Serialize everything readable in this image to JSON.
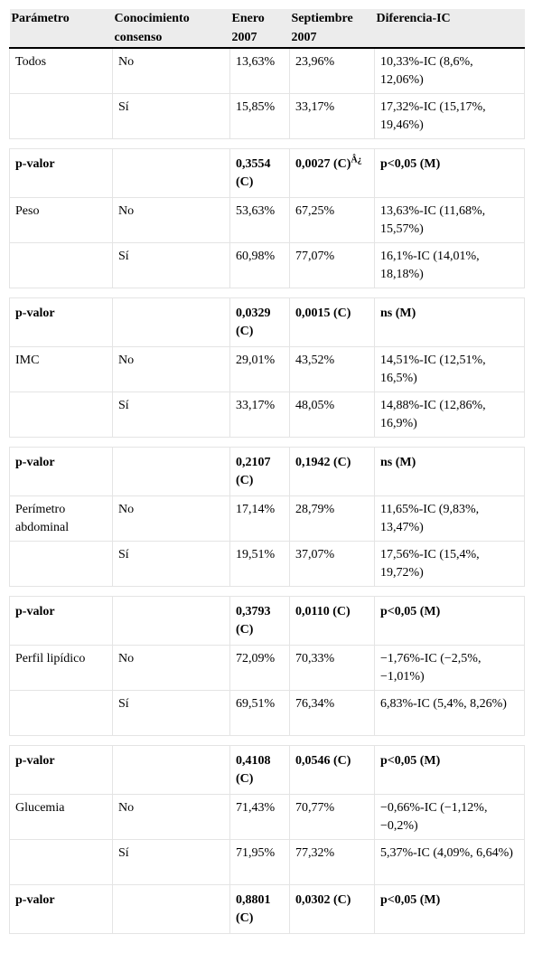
{
  "table": {
    "header": [
      "Parámetro",
      "Conocimiento consenso",
      "Enero 2007",
      "Septiembre 2007",
      "Diferencia-IC"
    ],
    "groups": [
      {
        "rows": [
          [
            "Todos",
            "No",
            "13,63%",
            "23,96%",
            "10,33%-IC (8,6%, 12,06%)"
          ],
          [
            null,
            "Sí",
            "15,85%",
            "33,17%",
            "17,32%-IC (15,17%, 19,46%)"
          ]
        ],
        "p": [
          "p-valor",
          null,
          "0,3554 (C)",
          {
            "text": "0,0027 (C)",
            "sup": "Â¿"
          },
          "p<0,05 (M)"
        ]
      },
      {
        "rows": [
          [
            "Peso",
            "No",
            "53,63%",
            "67,25%",
            "13,63%-IC (11,68%, 15,57%)"
          ],
          [
            null,
            "Sí",
            "60,98%",
            "77,07%",
            "16,1%-IC (14,01%, 18,18%)"
          ]
        ],
        "p": [
          "p-valor",
          null,
          "0,0329 (C)",
          "0,0015 (C)",
          "ns (M)"
        ]
      },
      {
        "rows": [
          [
            "IMC",
            "No",
            "29,01%",
            "43,52%",
            "14,51%-IC (12,51%, 16,5%)"
          ],
          [
            null,
            "Sí",
            "33,17%",
            "48,05%",
            "14,88%-IC (12,86%, 16,9%)"
          ]
        ],
        "p": [
          "p-valor",
          null,
          "0,2107 (C)",
          "0,1942 (C)",
          "ns (M)"
        ]
      },
      {
        "rows": [
          [
            "Perímetro abdominal",
            "No",
            "17,14%",
            "28,79%",
            "11,65%-IC (9,83%, 13,47%)"
          ],
          [
            null,
            "Sí",
            "19,51%",
            "37,07%",
            "17,56%-IC (15,4%, 19,72%)"
          ]
        ],
        "p": [
          "p-valor",
          null,
          "0,3793 (C)",
          "0,0110 (C)",
          "p<0,05 (M)"
        ]
      },
      {
        "rows": [
          [
            "Perfil lipídico",
            "No",
            "72,09%",
            "70,33%",
            "−1,76%-IC (−2,5%, −1,01%)"
          ],
          [
            null,
            "Sí",
            "69,51%",
            "76,34%",
            "6,83%-IC (5,4%, 8,26%)"
          ]
        ],
        "p": [
          "p-valor",
          null,
          "0,4108 (C)",
          "0,0546 (C)",
          "p<0,05 (M)"
        ]
      },
      {
        "rows": [
          [
            "Glucemia",
            "No",
            "71,43%",
            "70,77%",
            "−0,66%-IC (−1,12%, −0,2%)"
          ],
          [
            null,
            "Sí",
            "71,95%",
            "77,32%",
            "5,37%-IC (4,09%, 6,64%)"
          ]
        ],
        "p": [
          "p-valor",
          null,
          "0,8801 (C)",
          "0,0302 (C)",
          "p<0,05 (M)"
        ]
      }
    ]
  }
}
